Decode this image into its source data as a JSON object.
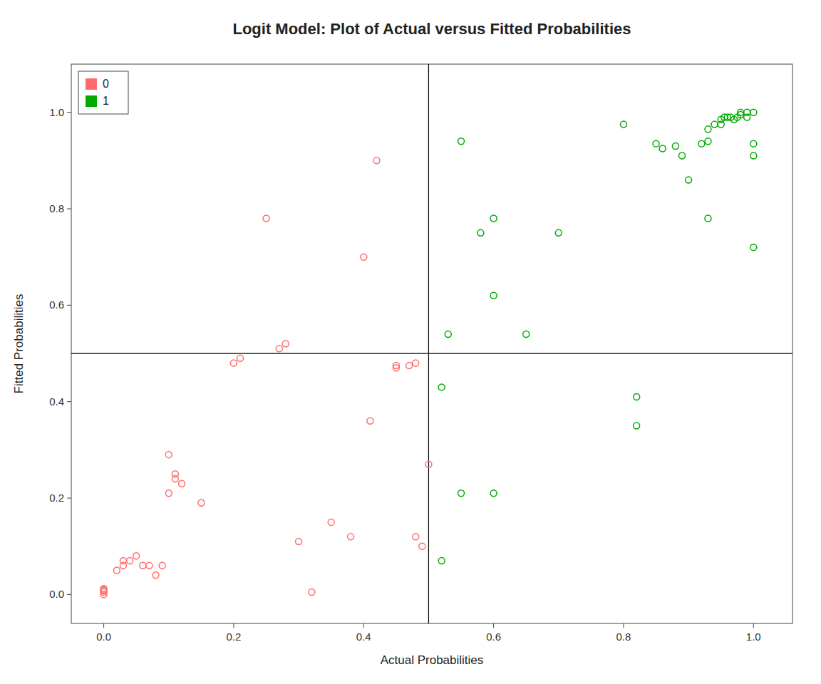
{
  "chart_data": {
    "type": "scatter",
    "title": "Logit Model: Plot of Actual versus Fitted Probabilities",
    "x_label": "Actual Probabilities",
    "y_label": "Fitted Probabilities",
    "xlim": [
      -0.05,
      1.06
    ],
    "ylim": [
      -0.06,
      1.1
    ],
    "xticks": [
      {
        "value": 0,
        "label": "0.0"
      },
      0.2,
      0.4,
      0.6,
      0.8,
      {
        "value": 1,
        "label": "1.0"
      }
    ],
    "yticks": [
      {
        "value": 0,
        "label": "0.0"
      },
      0.2,
      0.4,
      0.6,
      0.8,
      {
        "value": 1,
        "label": "1.0"
      }
    ],
    "hline": 0.5,
    "vline": 0.5,
    "grid": false,
    "legend": "upper left",
    "series": [
      {
        "name": "0",
        "color": "#FF6B6B",
        "x": [
          0.0,
          0.0,
          0.0,
          0.0,
          0.0,
          0.02,
          0.03,
          0.03,
          0.04,
          0.05,
          0.06,
          0.07,
          0.08,
          0.09,
          0.1,
          0.1,
          0.11,
          0.11,
          0.12,
          0.15,
          0.2,
          0.21,
          0.25,
          0.27,
          0.28,
          0.3,
          0.32,
          0.35,
          0.38,
          0.4,
          0.41,
          0.42,
          0.45,
          0.47,
          0.5,
          0.48,
          0.49,
          0.45,
          0.48
        ],
        "values": [
          0.0,
          0.005,
          0.008,
          0.01,
          0.012,
          0.05,
          0.06,
          0.07,
          0.07,
          0.08,
          0.06,
          0.06,
          0.04,
          0.06,
          0.21,
          0.29,
          0.25,
          0.24,
          0.23,
          0.19,
          0.48,
          0.49,
          0.78,
          0.51,
          0.52,
          0.11,
          0.005,
          0.15,
          0.12,
          0.7,
          0.36,
          0.9,
          0.47,
          0.475,
          0.27,
          0.12,
          0.1,
          0.475,
          0.48
        ]
      },
      {
        "name": "1",
        "color": "#00AA00",
        "x": [
          0.52,
          0.52,
          0.53,
          0.55,
          0.55,
          0.6,
          0.6,
          0.58,
          0.6,
          0.65,
          0.7,
          0.8,
          0.82,
          0.88,
          0.89,
          0.9,
          0.92,
          0.93,
          0.93,
          0.94,
          0.95,
          0.95,
          0.955,
          0.96,
          0.965,
          0.97,
          0.975,
          0.98,
          0.98,
          0.99,
          0.99,
          1.0,
          0.85,
          0.86,
          1.0,
          1.0,
          0.93,
          1.0,
          0.82
        ],
        "values": [
          0.07,
          0.43,
          0.54,
          0.94,
          0.21,
          0.62,
          0.21,
          0.75,
          0.78,
          0.54,
          0.75,
          0.975,
          0.35,
          0.93,
          0.91,
          0.86,
          0.935,
          0.94,
          0.965,
          0.975,
          0.985,
          0.975,
          0.99,
          0.99,
          0.99,
          0.985,
          0.99,
          1.0,
          0.995,
          1.0,
          0.99,
          1.0,
          0.935,
          0.925,
          0.935,
          0.91,
          0.78,
          0.72,
          0.41
        ]
      }
    ]
  }
}
